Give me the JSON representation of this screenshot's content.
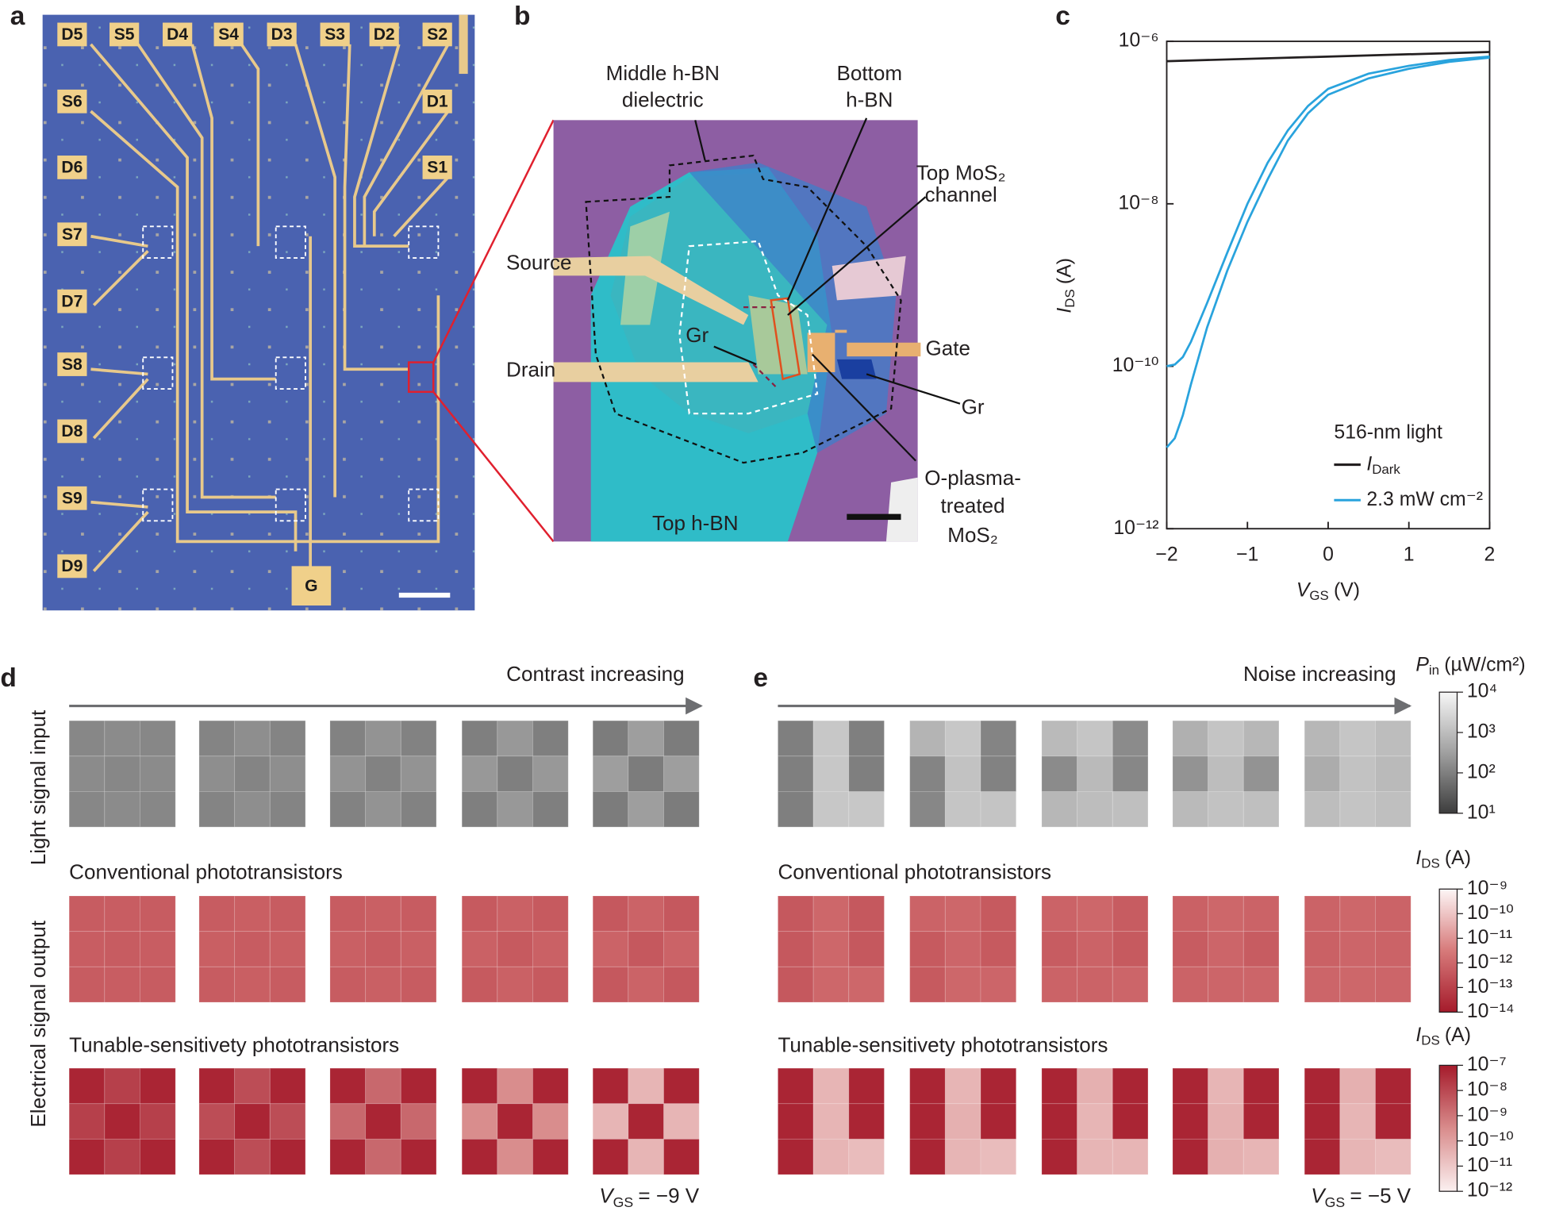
{
  "panel_labels": {
    "a": "a",
    "b": "b",
    "c": "c",
    "d": "d",
    "e": "e"
  },
  "panel_a": {
    "pads": [
      "D5",
      "S5",
      "D4",
      "S4",
      "D3",
      "S3",
      "D2",
      "S2",
      "S6",
      "D1",
      "D6",
      "S1",
      "S7",
      "D7",
      "S8",
      "D8",
      "S9",
      "D9"
    ],
    "gate": "G"
  },
  "panel_b": {
    "middle_hbn": [
      "Middle h-BN",
      "dielectric"
    ],
    "bottom_hbn": [
      "Bottom",
      "h-BN"
    ],
    "top_mos2": [
      "Top MoS₂",
      "channel"
    ],
    "source": "Source",
    "drain": "Drain",
    "gate": "Gate",
    "gr_left": "Gr",
    "gr_right": "Gr",
    "o_plasma": [
      "O-plasma-",
      "treated",
      "MoS₂"
    ],
    "top_hbn": "Top h-BN"
  },
  "chart_data": {
    "type": "line",
    "xlabel": {
      "main": "V",
      "sub": "GS",
      "unit": "(V)"
    },
    "ylabel": {
      "main": "I",
      "sub": "DS",
      "unit": "(A)"
    },
    "xlim": [
      -2,
      2
    ],
    "xticks": [
      {
        "value": -2,
        "label": "−2"
      },
      {
        "value": -1,
        "label": "−1"
      },
      0,
      1,
      2
    ],
    "ylim": [
      1e-12,
      1e-06
    ],
    "log_y": true,
    "yticks": [
      {
        "value": 1e-12,
        "label": "10⁻¹²"
      },
      {
        "value": 1e-10,
        "label": "10⁻¹⁰"
      },
      {
        "value": 1e-08,
        "label": "10⁻⁸"
      },
      {
        "value": 1e-06,
        "label": "10⁻⁶"
      }
    ],
    "legend_title": "516-nm light",
    "series": [
      {
        "name": {
          "main": "I",
          "sub": "Dark"
        },
        "color": "#231f20",
        "x": [
          -2,
          2
        ],
        "values": [
          5.7e-07,
          7.4e-07
        ]
      },
      {
        "name": "2.3 mW cm⁻²",
        "color": "#29a3dd",
        "x": [
          -2,
          -1.9,
          -1.8,
          -1.7,
          -1.5,
          -1.25,
          -1,
          -0.75,
          -0.5,
          -0.25,
          0,
          0.5,
          1,
          1.5,
          2
        ],
        "values": [
          1e-11,
          1.3e-11,
          2.5e-11,
          6e-11,
          3e-10,
          1.5e-09,
          6e-09,
          2e-08,
          6e-08,
          1.3e-07,
          2.2e-07,
          3.5e-07,
          4.6e-07,
          5.6e-07,
          6.3e-07
        ]
      },
      {
        "color": "#29a3dd",
        "x": [
          -2,
          -1.9,
          -1.8,
          -1.7,
          -1.5,
          -1.25,
          -1,
          -0.75,
          -0.5,
          -0.25,
          0,
          0.5,
          1,
          1.5,
          2
        ],
        "values": [
          1e-10,
          1.05e-10,
          1.3e-10,
          2e-10,
          6e-10,
          2.5e-09,
          1e-08,
          3.2e-08,
          8e-08,
          1.6e-07,
          2.6e-07,
          4e-07,
          5e-07,
          5.9e-07,
          6.5e-07
        ]
      }
    ]
  },
  "row_titles": {
    "input": "Light signal input",
    "output": "Electrical signal output",
    "conventional": "Conventional phototransistors",
    "tunable": "Tunable-sensitivety phototransistors"
  },
  "colorbars": {
    "input": {
      "title": {
        "main": "P",
        "sub": "in",
        "unit": "(µW/cm²)"
      },
      "lim": [
        10,
        10000
      ],
      "colors": [
        "#3d3d3d",
        "#a0a0a0",
        "#f7f7f7"
      ],
      "ticks": [
        {
          "value": 10,
          "label": "10¹"
        },
        {
          "value": 100,
          "label": "10²"
        },
        {
          "value": 1000,
          "label": "10³"
        },
        {
          "value": 10000,
          "label": "10⁴"
        }
      ]
    },
    "conventional": {
      "title": {
        "main": "I",
        "sub": "DS",
        "unit": "(A)"
      },
      "lim": [
        1e-14,
        1e-09
      ],
      "colors": [
        "#a51b2b",
        "#d77a7a",
        "#fdf6f6"
      ],
      "ticks": [
        {
          "value": 1e-14,
          "label": "10⁻¹⁴"
        },
        {
          "value": 1e-13,
          "label": "10⁻¹³"
        },
        {
          "value": 1e-12,
          "label": "10⁻¹²"
        },
        {
          "value": 1e-11,
          "label": "10⁻¹¹"
        },
        {
          "value": 1e-10,
          "label": "10⁻¹⁰"
        },
        {
          "value": 1e-09,
          "label": "10⁻⁹"
        }
      ]
    },
    "tunable": {
      "title": {
        "main": "I",
        "sub": "DS",
        "unit": "(A)"
      },
      "lim": [
        1e-12,
        1e-07
      ],
      "colors": [
        "#fbf0f0",
        "#d98c8c",
        "#a51b2b"
      ],
      "ticks": [
        {
          "value": 1e-12,
          "label": "10⁻¹²"
        },
        {
          "value": 1e-11,
          "label": "10⁻¹¹"
        },
        {
          "value": 1e-10,
          "label": "10⁻¹⁰"
        },
        {
          "value": 1e-09,
          "label": "10⁻⁹"
        },
        {
          "value": 1e-08,
          "label": "10⁻⁸"
        },
        {
          "value": 1e-07,
          "label": "10⁻⁷"
        }
      ]
    }
  },
  "panel_d": {
    "arrow": "Contrast increasing",
    "vgs": {
      "main": "V",
      "sub": "GS",
      "rest": "= −9 V"
    },
    "input": [
      [
        [
          130,
          150,
          130
        ],
        [
          150,
          130,
          150
        ],
        [
          130,
          150,
          130
        ]
      ],
      [
        [
          120,
          170,
          120
        ],
        [
          170,
          120,
          170
        ],
        [
          120,
          170,
          120
        ]
      ],
      [
        [
          110,
          200,
          110
        ],
        [
          200,
          110,
          200
        ],
        [
          110,
          200,
          110
        ]
      ],
      [
        [
          100,
          240,
          100
        ],
        [
          240,
          100,
          240
        ],
        [
          100,
          240,
          100
        ]
      ],
      [
        [
          90,
          300,
          90
        ],
        [
          300,
          90,
          300
        ],
        [
          90,
          300,
          90
        ]
      ]
    ],
    "conventional": [
      [
        [
          5e-13,
          5.5e-13,
          5e-13
        ],
        [
          5.5e-13,
          5e-13,
          5.5e-13
        ],
        [
          5e-13,
          5.5e-13,
          5e-13
        ]
      ],
      [
        [
          5e-13,
          6e-13,
          5e-13
        ],
        [
          6e-13,
          5e-13,
          6e-13
        ],
        [
          5e-13,
          6e-13,
          5e-13
        ]
      ],
      [
        [
          5e-13,
          6.5e-13,
          5e-13
        ],
        [
          6.5e-13,
          5e-13,
          6.5e-13
        ],
        [
          5e-13,
          6.5e-13,
          5e-13
        ]
      ],
      [
        [
          4.5e-13,
          7e-13,
          4.5e-13
        ],
        [
          7e-13,
          4.5e-13,
          7e-13
        ],
        [
          4.5e-13,
          7e-13,
          4.5e-13
        ]
      ],
      [
        [
          4e-13,
          8e-13,
          4e-13
        ],
        [
          8e-13,
          4e-13,
          8e-13
        ],
        [
          4e-13,
          8e-13,
          4e-13
        ]
      ]
    ],
    "tunable": [
      [
        [
          6e-08,
          1.5e-08,
          6e-08
        ],
        [
          1.5e-08,
          6e-08,
          1.5e-08
        ],
        [
          6e-08,
          1.5e-08,
          6e-08
        ]
      ],
      [
        [
          6e-08,
          8e-09,
          6e-08
        ],
        [
          8e-09,
          6e-08,
          8e-09
        ],
        [
          6e-08,
          8e-09,
          6e-08
        ]
      ],
      [
        [
          6e-08,
          2e-09,
          6e-08
        ],
        [
          2e-09,
          6e-08,
          2e-09
        ],
        [
          6e-08,
          2e-09,
          6e-08
        ]
      ],
      [
        [
          6e-08,
          3e-10,
          6e-08
        ],
        [
          3e-10,
          6e-08,
          3e-10
        ],
        [
          6e-08,
          3e-10,
          6e-08
        ]
      ],
      [
        [
          6e-08,
          3e-11,
          6e-08
        ],
        [
          3e-11,
          6e-08,
          3e-11
        ],
        [
          6e-08,
          3e-11,
          6e-08
        ]
      ]
    ]
  },
  "panel_e": {
    "arrow": "Noise increasing",
    "vgs": {
      "main": "V",
      "sub": "GS",
      "rest": "= −5 V"
    },
    "input": [
      [
        [
          100,
          1500,
          100
        ],
        [
          100,
          1500,
          100
        ],
        [
          100,
          1500,
          1500
        ]
      ],
      [
        [
          700,
          1500,
          120
        ],
        [
          120,
          1200,
          110
        ],
        [
          130,
          1400,
          1300
        ]
      ],
      [
        [
          900,
          1400,
          150
        ],
        [
          150,
          900,
          130
        ],
        [
          800,
          1000,
          1100
        ]
      ],
      [
        [
          600,
          1300,
          800
        ],
        [
          200,
          1000,
          200
        ],
        [
          900,
          1200,
          1100
        ]
      ],
      [
        [
          800,
          1400,
          1000
        ],
        [
          500,
          1200,
          900
        ],
        [
          1000,
          1300,
          1100
        ]
      ]
    ],
    "conventional": [
      [
        [
          4e-13,
          1e-12,
          4e-13
        ],
        [
          4e-13,
          1e-12,
          4e-13
        ],
        [
          4e-13,
          1e-12,
          1e-12
        ]
      ],
      [
        [
          8e-13,
          1e-12,
          4.5e-13
        ],
        [
          4.5e-13,
          9e-13,
          4.5e-13
        ],
        [
          4.5e-13,
          1e-12,
          9e-13
        ]
      ],
      [
        [
          8e-13,
          1e-12,
          5e-13
        ],
        [
          5e-13,
          8e-13,
          4.5e-13
        ],
        [
          8e-13,
          8e-13,
          9e-13
        ]
      ],
      [
        [
          7e-13,
          1e-12,
          8e-13
        ],
        [
          5e-13,
          9e-13,
          5e-13
        ],
        [
          8e-13,
          9e-13,
          9e-13
        ]
      ],
      [
        [
          8e-13,
          1e-12,
          8e-13
        ],
        [
          7e-13,
          9e-13,
          8e-13
        ],
        [
          9e-13,
          1e-12,
          9e-13
        ]
      ]
    ],
    "tunable": [
      [
        [
          6e-08,
          3e-11,
          6e-08
        ],
        [
          6e-08,
          3e-11,
          6e-08
        ],
        [
          6e-08,
          3e-11,
          2e-11
        ]
      ],
      [
        [
          6e-08,
          3e-11,
          6e-08
        ],
        [
          6e-08,
          4e-11,
          6e-08
        ],
        [
          6e-08,
          3e-11,
          2e-11
        ]
      ],
      [
        [
          6e-08,
          4e-11,
          6e-08
        ],
        [
          6e-08,
          3e-11,
          6e-08
        ],
        [
          6e-08,
          3e-11,
          3e-11
        ]
      ],
      [
        [
          6e-08,
          3e-11,
          6e-08
        ],
        [
          6e-08,
          4e-11,
          6e-08
        ],
        [
          6e-08,
          4e-11,
          3e-11
        ]
      ],
      [
        [
          6e-08,
          4e-11,
          6e-08
        ],
        [
          6e-08,
          3e-11,
          6e-08
        ],
        [
          6e-08,
          3e-11,
          2e-11
        ]
      ]
    ]
  }
}
